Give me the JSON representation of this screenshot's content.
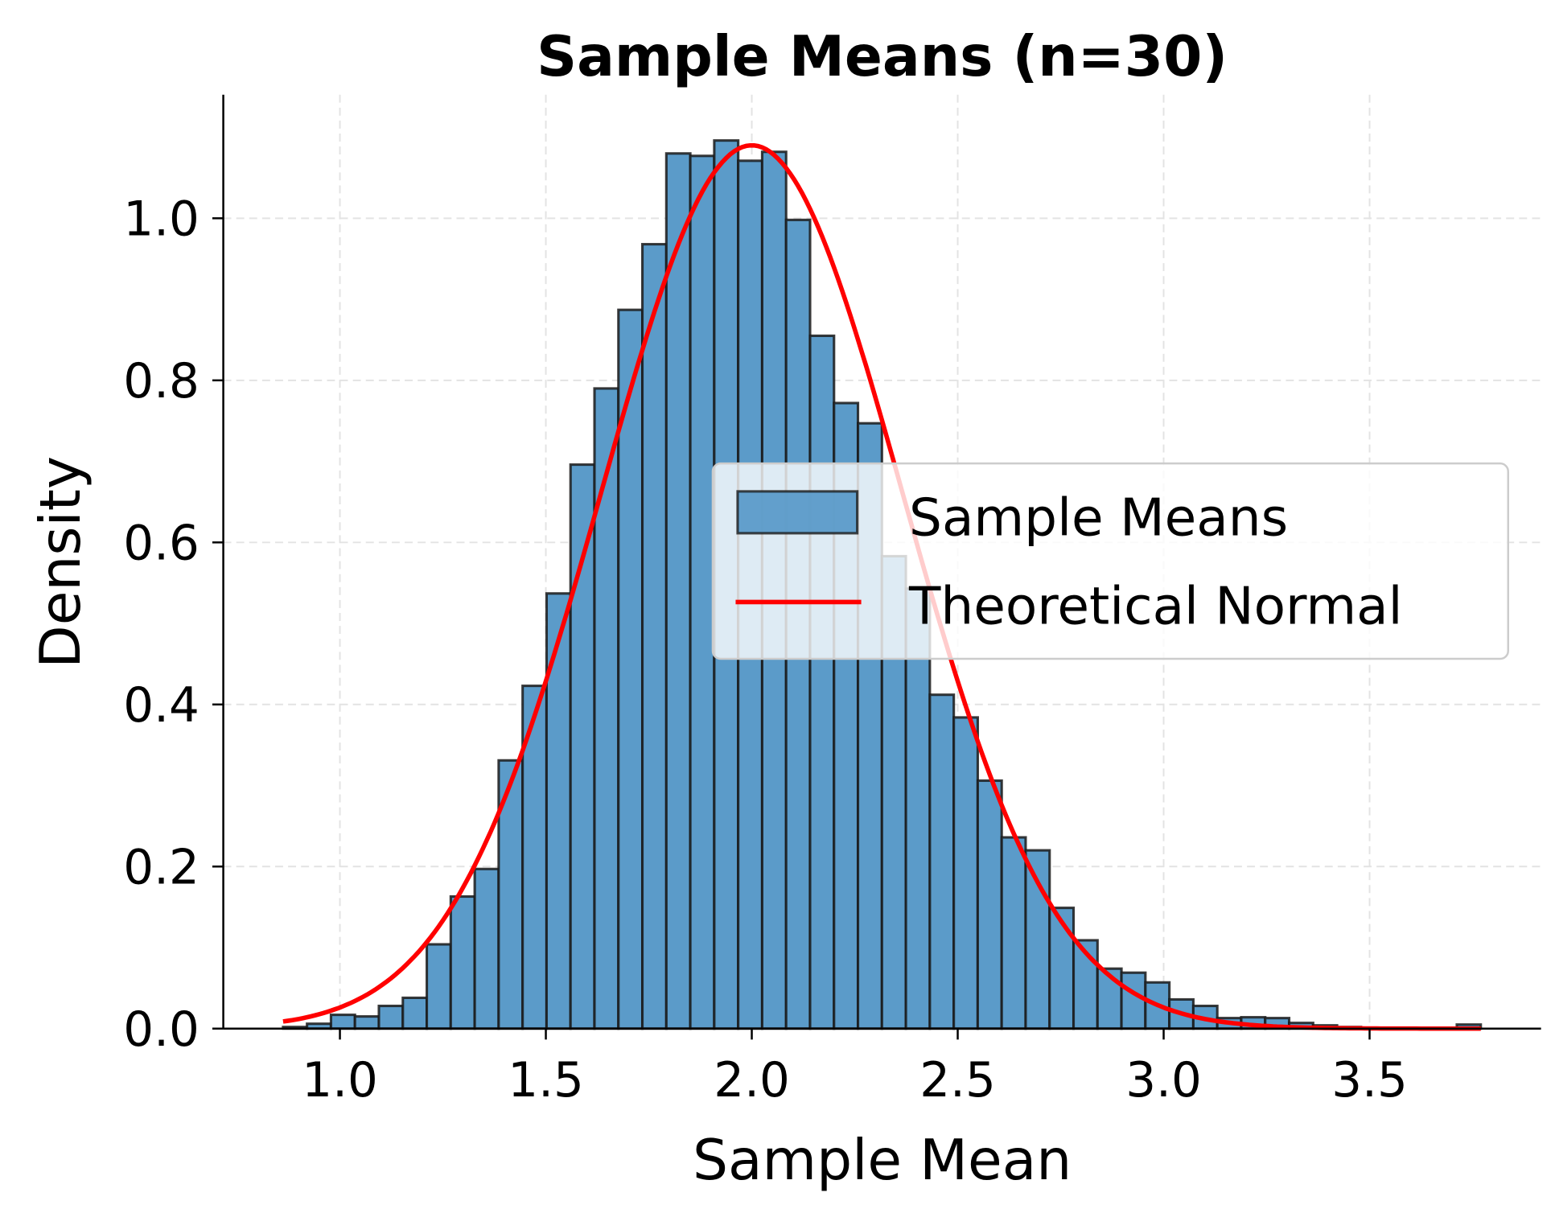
{
  "chart_data": {
    "type": "bar",
    "title": "Sample Means (n=30)",
    "xlabel": "Sample Mean",
    "ylabel": "Density",
    "xlim": [
      0.72,
      3.9
    ],
    "ylim": [
      0,
      1.15
    ],
    "xticks": [
      "1.0",
      "1.5",
      "2.0",
      "2.5",
      "3.0",
      "3.5"
    ],
    "xtick_values": [
      1.0,
      1.5,
      2.0,
      2.5,
      3.0,
      3.5
    ],
    "yticks": [
      "0.0",
      "0.2",
      "0.4",
      "0.6",
      "0.8",
      "1.0"
    ],
    "ytick_values": [
      0,
      0.2,
      0.4,
      0.6,
      0.8,
      1.0
    ],
    "grid": true,
    "legend_position": "center-right",
    "bin_start": 0.862,
    "bin_end": 3.77,
    "series": [
      {
        "name": "Sample Means",
        "type": "histogram",
        "color": "#5b9bc9",
        "edge_color": "#1a1a1a",
        "values": [
          0.002,
          0.006,
          0.017,
          0.015,
          0.028,
          0.038,
          0.104,
          0.163,
          0.197,
          0.331,
          0.423,
          0.537,
          0.696,
          0.79,
          0.887,
          0.968,
          1.08,
          1.077,
          1.096,
          1.071,
          1.082,
          0.998,
          0.855,
          0.772,
          0.747,
          0.583,
          0.543,
          0.412,
          0.384,
          0.306,
          0.236,
          0.22,
          0.149,
          0.109,
          0.074,
          0.069,
          0.057,
          0.036,
          0.028,
          0.013,
          0.014,
          0.013,
          0.007,
          0.004,
          0.002,
          0.001,
          0.001,
          0.0,
          0.0,
          0.005
        ]
      },
      {
        "name": "Theoretical Normal",
        "type": "line",
        "color": "#ff0000",
        "mean": 2.0,
        "std": 0.366
      }
    ]
  }
}
